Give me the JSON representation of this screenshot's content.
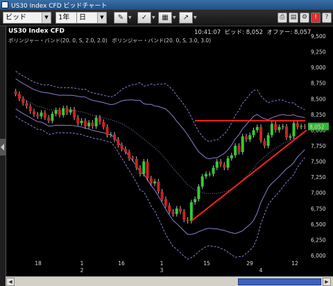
{
  "window": {
    "title": "US30 Index CFD ビッドチャート"
  },
  "toolbar": {
    "price_type": "ビッド",
    "period": "1年",
    "interval": "日"
  },
  "chart_header": {
    "symbol": "US30 Index CFD",
    "time": "10:41:07",
    "bid_label": "ビッド",
    "bid_value": "8,052",
    "offer_label": "オファー",
    "offer_value": "8,057",
    "legend": [
      "ボリンジャー・バンド(20. 0, S, 2.0, 2.0)",
      "ボリンジャー・バンド(20. 0, S, 3.0, 3.0)"
    ]
  },
  "current_price_label": "8,052",
  "colors": {
    "bull": "#33cc33",
    "bear": "#cc2222",
    "band2": "#8a7fd0",
    "band3": "#8a7fd0",
    "trendline": "#ff2020"
  },
  "chart_data": {
    "type": "candlestick",
    "y_ticks": [
      "9,500",
      "9,250",
      "9,000",
      "8,750",
      "8,500",
      "8,250",
      "8,000",
      "7,750",
      "7,500",
      "7,250",
      "7,000",
      "6,750",
      "6,500",
      "6,250",
      "6,000"
    ],
    "ylim": [
      6000,
      9500
    ],
    "x_ticks": [
      {
        "day": "18",
        "month": ""
      },
      {
        "day": "",
        "month": "2"
      },
      {
        "day": "1",
        "month": ""
      },
      {
        "day": "16",
        "month": ""
      },
      {
        "day": "1",
        "month": "3"
      },
      {
        "day": "15",
        "month": ""
      },
      {
        "day": "29",
        "month": ""
      },
      {
        "day": "",
        "month": "4"
      },
      {
        "day": "12",
        "month": ""
      }
    ],
    "closes": [
      8580,
      8500,
      8430,
      8380,
      8300,
      8250,
      8220,
      8280,
      8200,
      8150,
      8260,
      8320,
      8240,
      8350,
      8280,
      8330,
      8200,
      8110,
      8150,
      8060,
      8120,
      8060,
      8200,
      8130,
      8050,
      7920,
      7930,
      7850,
      7760,
      7700,
      7650,
      7550,
      7540,
      7400,
      7300,
      7500,
      7230,
      7150,
      7180,
      7020,
      6900,
      6800,
      6700,
      6660,
      6750,
      6700,
      6570,
      6550,
      6850,
      6900,
      7100,
      7260,
      7300,
      7300,
      7400,
      7500,
      7450,
      7400,
      7550,
      7600,
      7750,
      7650,
      7900,
      7850,
      7920,
      8000,
      8050,
      7830,
      7750,
      7920,
      8100,
      8000,
      8050,
      8060,
      7880,
      7900,
      8110,
      8050,
      8060,
      8052
    ],
    "resistance_level": 8150,
    "support_line": {
      "from_index": 48,
      "from_value": 6550,
      "to_index": 79,
      "to_value": 8000
    }
  }
}
